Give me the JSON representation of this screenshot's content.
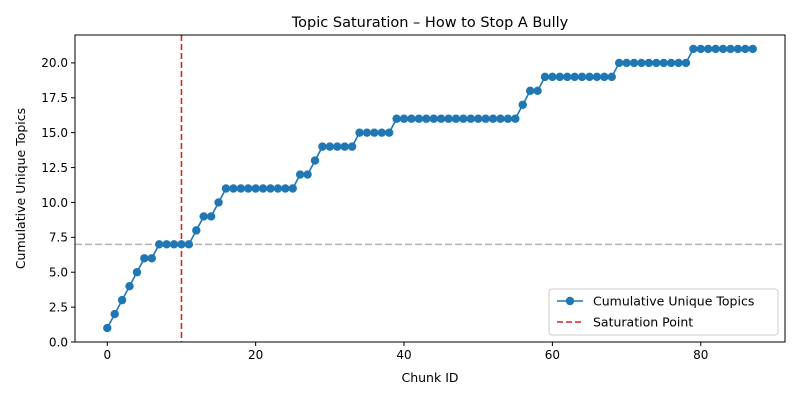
{
  "chart_data": {
    "type": "line",
    "title": "Topic Saturation – How to Stop A Bully",
    "xlabel": "Chunk ID",
    "ylabel": "Cumulative Unique Topics",
    "xlim": [
      -4.35,
      91.35
    ],
    "ylim": [
      0,
      22
    ],
    "x_ticks": [
      0,
      20,
      40,
      60,
      80
    ],
    "x_tick_labels": [
      "0",
      "20",
      "40",
      "60",
      "80"
    ],
    "y_ticks": [
      0,
      2.5,
      5,
      7.5,
      10,
      12.5,
      15,
      17.5,
      20
    ],
    "y_tick_labels": [
      "0.0",
      "2.5",
      "5.0",
      "7.5",
      "10.0",
      "12.5",
      "15.0",
      "17.5",
      "20.0"
    ],
    "grid": false,
    "legend_position": "lower-right",
    "series": [
      {
        "name": "Cumulative Unique Topics",
        "color": "#1f77b4",
        "marker": "circle",
        "x": [
          0,
          1,
          2,
          3,
          4,
          5,
          6,
          7,
          8,
          9,
          10,
          11,
          12,
          13,
          14,
          15,
          16,
          17,
          18,
          19,
          20,
          21,
          22,
          23,
          24,
          25,
          26,
          27,
          28,
          29,
          30,
          31,
          32,
          33,
          34,
          35,
          36,
          37,
          38,
          39,
          40,
          41,
          42,
          43,
          44,
          45,
          46,
          47,
          48,
          49,
          50,
          51,
          52,
          53,
          54,
          55,
          56,
          57,
          58,
          59,
          60,
          61,
          62,
          63,
          64,
          65,
          66,
          67,
          68,
          69,
          70,
          71,
          72,
          73,
          74,
          75,
          76,
          77,
          78,
          79,
          80,
          81,
          82,
          83,
          84,
          85,
          86,
          87
        ],
        "values": [
          1,
          2,
          3,
          4,
          5,
          6,
          6,
          7,
          7,
          7,
          7,
          7,
          8,
          9,
          9,
          10,
          11,
          11,
          11,
          11,
          11,
          11,
          11,
          11,
          11,
          11,
          12,
          12,
          13,
          14,
          14,
          14,
          14,
          14,
          15,
          15,
          15,
          15,
          15,
          16,
          16,
          16,
          16,
          16,
          16,
          16,
          16,
          16,
          16,
          16,
          16,
          16,
          16,
          16,
          16,
          16,
          17,
          18,
          18,
          19,
          19,
          19,
          19,
          19,
          19,
          19,
          19,
          19,
          19,
          20,
          20,
          20,
          20,
          20,
          20,
          20,
          20,
          20,
          20,
          21,
          21,
          21,
          21,
          21,
          21,
          21,
          21,
          21
        ]
      }
    ],
    "reference_lines": [
      {
        "name": "Saturation Point",
        "orientation": "vertical",
        "value": 10,
        "color": "#d62728",
        "style": "dashed"
      },
      {
        "orientation": "horizontal",
        "value": 7,
        "color": "#b3b3b3",
        "style": "dashed"
      }
    ]
  }
}
